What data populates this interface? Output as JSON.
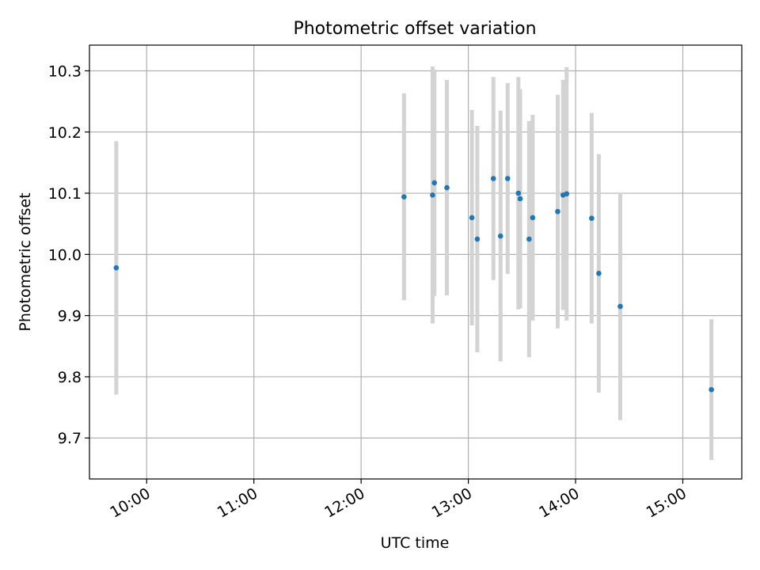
{
  "chart_data": {
    "type": "scatter",
    "title": "Photometric offset variation",
    "xlabel": "UTC time",
    "ylabel": "Photometric offset",
    "x_is_time": true,
    "xlim": [
      "09:28",
      "15:33"
    ],
    "ylim": [
      9.633,
      10.342
    ],
    "x_ticks": [
      "10:00",
      "11:00",
      "12:00",
      "13:00",
      "14:00",
      "15:00"
    ],
    "y_ticks": [
      9.7,
      9.8,
      9.9,
      10.0,
      10.1,
      10.2,
      10.3
    ],
    "y_tick_labels": [
      "9.7",
      "9.8",
      "9.9",
      "10.0",
      "10.1",
      "10.2",
      "10.3"
    ],
    "grid": true,
    "colors": {
      "marker": "#1f77b4",
      "errorbar": "#d3d3d3",
      "grid": "#b0b0b0",
      "axes": "#000000"
    },
    "series": [
      {
        "points": [
          {
            "x": "09:43",
            "y": 9.978,
            "err": 0.207
          },
          {
            "x": "12:24",
            "y": 10.094,
            "err": 0.169
          },
          {
            "x": "12:40",
            "y": 10.097,
            "err": 0.21
          },
          {
            "x": "12:41",
            "y": 10.117,
            "err": 0.185
          },
          {
            "x": "12:48",
            "y": 10.109,
            "err": 0.176
          },
          {
            "x": "13:02",
            "y": 10.06,
            "err": 0.176
          },
          {
            "x": "13:05",
            "y": 10.025,
            "err": 0.185
          },
          {
            "x": "13:14",
            "y": 10.124,
            "err": 0.166
          },
          {
            "x": "13:18",
            "y": 10.03,
            "err": 0.205
          },
          {
            "x": "13:22",
            "y": 10.124,
            "err": 0.156
          },
          {
            "x": "13:28",
            "y": 10.1,
            "err": 0.19
          },
          {
            "x": "13:29",
            "y": 10.091,
            "err": 0.179
          },
          {
            "x": "13:34",
            "y": 10.025,
            "err": 0.193
          },
          {
            "x": "13:36",
            "y": 10.06,
            "err": 0.168
          },
          {
            "x": "13:50",
            "y": 10.07,
            "err": 0.191
          },
          {
            "x": "13:53",
            "y": 10.097,
            "err": 0.188
          },
          {
            "x": "13:55",
            "y": 10.099,
            "err": 0.207
          },
          {
            "x": "14:09",
            "y": 10.059,
            "err": 0.172
          },
          {
            "x": "14:13",
            "y": 9.969,
            "err": 0.195
          },
          {
            "x": "14:25",
            "y": 9.915,
            "err": 0.186
          },
          {
            "x": "15:16",
            "y": 9.779,
            "err": 0.115
          }
        ]
      }
    ]
  }
}
